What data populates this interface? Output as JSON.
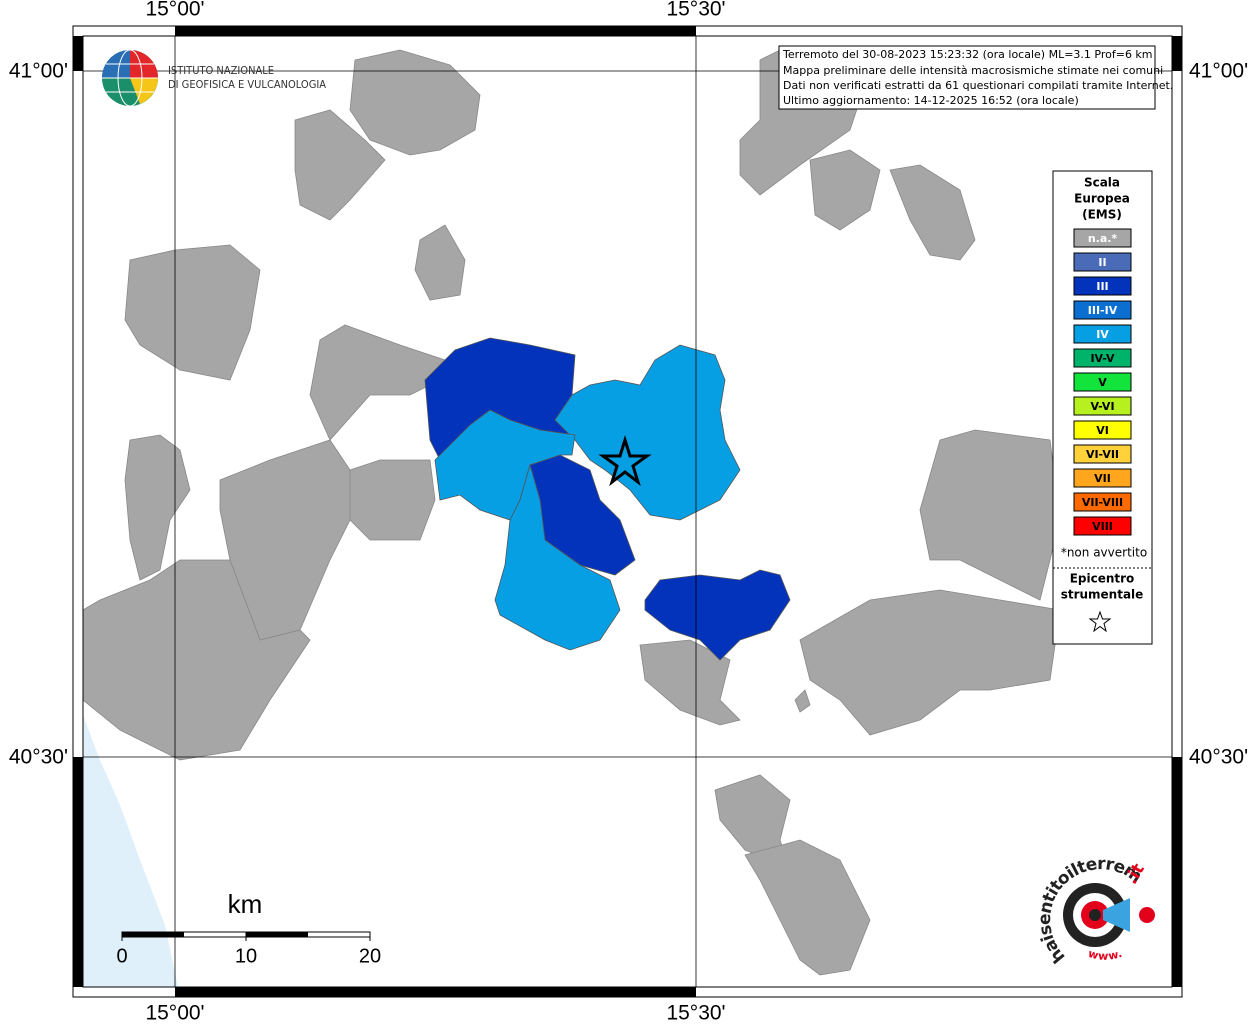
{
  "map": {
    "graticule": {
      "top": [
        "15°00'",
        "15°30'"
      ],
      "bottom": [
        "15°00'",
        "15°30'"
      ],
      "left": [
        "41°00'",
        "40°30'"
      ],
      "right": [
        "41°00'",
        "40°30'"
      ]
    },
    "logo": [
      "ISTITUTO NAZIONALE",
      "DI GEOFISICA E VULCANOLOGIA"
    ],
    "info": [
      "Terremoto del 30-08-2023 15:23:32 (ora locale) ML=3.1 Prof=6 km",
      "Mappa preliminare delle intensità macrosismiche stimate nei comuni",
      "Dati non verificati estratti da 61 questionari compilati tramite Internet.",
      "Ultimo aggiornamento: 14-12-2025 16:52 (ora locale)"
    ],
    "legend": {
      "title": [
        "Scala",
        "Europea",
        "(EMS)"
      ],
      "items": [
        {
          "label": "n.a.*",
          "color": "#a6a6a6"
        },
        {
          "label": "II",
          "color": "#4a6cb8"
        },
        {
          "label": "III",
          "color": "#0333bb"
        },
        {
          "label": "III-IV",
          "color": "#0a6fd0"
        },
        {
          "label": "IV",
          "color": "#079fe3"
        },
        {
          "label": "IV-V",
          "color": "#00b36b"
        },
        {
          "label": "V",
          "color": "#12e43c"
        },
        {
          "label": "V-VI",
          "color": "#b6f01e"
        },
        {
          "label": "VI",
          "color": "#ffff00"
        },
        {
          "label": "VI-VII",
          "color": "#ffd23c"
        },
        {
          "label": "VII",
          "color": "#ffa51e"
        },
        {
          "label": "VII-VIII",
          "color": "#ff6a00"
        },
        {
          "label": "VIII",
          "color": "#ff0000"
        }
      ],
      "note": "*non avvertito",
      "epicenter": [
        "Epicentro",
        "strumentale"
      ]
    },
    "scale_bar": {
      "unit": "km",
      "labels": [
        "0",
        "10",
        "20"
      ]
    },
    "badge": {
      "text": "haisentitoilterremoto",
      "suffix": ".it",
      "prefix": "www."
    }
  }
}
